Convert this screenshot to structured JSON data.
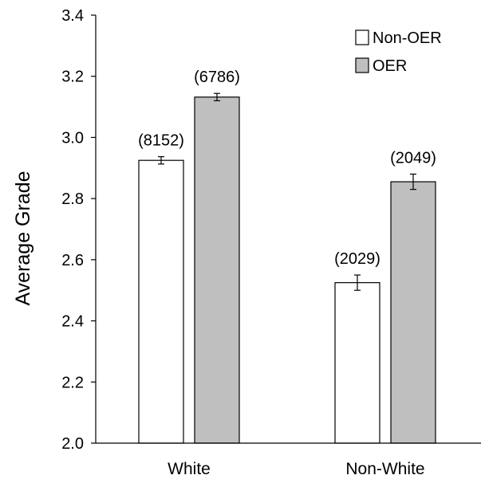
{
  "chart_data": {
    "type": "bar",
    "categories": [
      "White",
      "Non-White"
    ],
    "series": [
      {
        "name": "Non-OER",
        "values": [
          2.925,
          2.525
        ],
        "errors": [
          0.012,
          0.025
        ],
        "n_labels": [
          "(8152)",
          "(2029)"
        ],
        "color": "#ffffff"
      },
      {
        "name": "OER",
        "values": [
          3.132,
          2.855
        ],
        "errors": [
          0.012,
          0.025
        ],
        "n_labels": [
          "(6786)",
          "(2049)"
        ],
        "color": "#bfbfbf"
      }
    ],
    "xlabel": "",
    "ylabel": "Average Grade",
    "ylim": [
      2.0,
      3.4
    ],
    "yticks": [
      "2.0",
      "2.2",
      "2.4",
      "2.6",
      "2.8",
      "3.0",
      "3.2",
      "3.4"
    ],
    "grid": false,
    "legend_position": "top-right"
  }
}
